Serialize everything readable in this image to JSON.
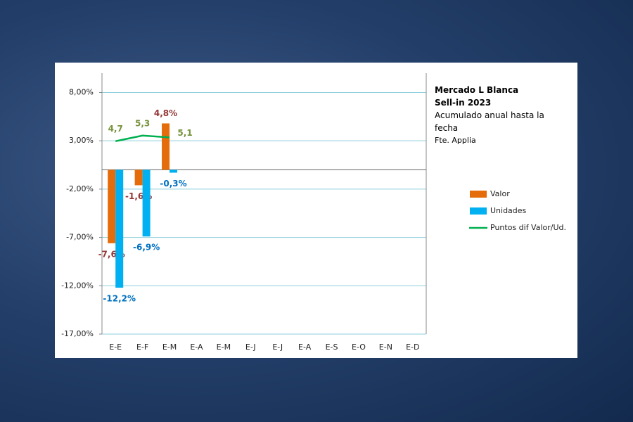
{
  "chart_data": {
    "type": "bar",
    "title": "Mercado L Blanca",
    "subtitle": "Sell-in 2023",
    "description": "Acumulado anual hasta la fecha",
    "source": "Fte. Applia",
    "categories": [
      "E-E",
      "E-F",
      "E-M",
      "E-A",
      "E-M",
      "E-J",
      "E-J",
      "E-A",
      "E-S",
      "E-O",
      "E-N",
      "E-D"
    ],
    "ylim": [
      -17,
      10
    ],
    "yticks": [
      {
        "value": -17,
        "label": "-17,00%"
      },
      {
        "value": -12,
        "label": "-12,00%"
      },
      {
        "value": -7,
        "label": "-7,00%"
      },
      {
        "value": -2,
        "label": "-2,00%"
      },
      {
        "value": 3,
        "label": "3,00%"
      },
      {
        "value": 8,
        "label": "8,00%"
      }
    ],
    "y2lim": [
      -16,
      12
    ],
    "grid": true,
    "legend": "right",
    "series": [
      {
        "name": "Valor",
        "type": "bar",
        "color": "#e46c0a",
        "label_color": "#953735",
        "values": [
          -7.6,
          -1.6,
          4.8,
          null,
          null,
          null,
          null,
          null,
          null,
          null,
          null,
          null
        ],
        "value_labels": [
          "-7,6%",
          "-1,6%",
          "4,8%",
          null,
          null,
          null,
          null,
          null,
          null,
          null,
          null,
          null
        ]
      },
      {
        "name": "Unidades",
        "type": "bar",
        "color": "#00b0f0",
        "label_color": "#0070c0",
        "values": [
          -12.2,
          -6.9,
          -0.3,
          null,
          null,
          null,
          null,
          null,
          null,
          null,
          null,
          null
        ],
        "value_labels": [
          "-12,2%",
          "-6,9%",
          "-0,3%",
          null,
          null,
          null,
          null,
          null,
          null,
          null,
          null,
          null
        ]
      },
      {
        "name": "Puntos dif Valor/Ud.",
        "type": "line",
        "axis": "y2",
        "color": "#00b050",
        "label_color": "#77933c",
        "values": [
          4.7,
          5.3,
          5.1,
          null,
          null,
          null,
          null,
          null,
          null,
          null,
          null,
          null
        ],
        "value_labels": [
          "4,7",
          "5,3",
          "5,1",
          null,
          null,
          null,
          null,
          null,
          null,
          null,
          null,
          null
        ]
      }
    ]
  }
}
